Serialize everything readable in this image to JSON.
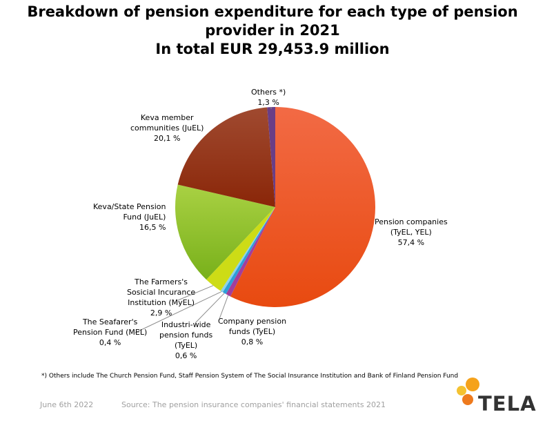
{
  "title": {
    "line1": "Breakdown of pension expenditure for each type of pension",
    "line2": "provider in 2021",
    "line3": "In total EUR 29,453.9 million"
  },
  "chart_data": {
    "type": "pie",
    "title": "Breakdown of pension expenditure for each type of pension provider in 2021",
    "subtitle": "In total EUR 29,453.9 million",
    "slices": [
      {
        "id": "pension-companies",
        "label_lines": [
          "Pension companies",
          "(TyEL, YEL)"
        ],
        "value": 57.4,
        "value_text": "57,4 %",
        "color": "#f0561e"
      },
      {
        "id": "company-pension-funds",
        "label_lines": [
          "Company pension",
          "funds (TyEL)"
        ],
        "value": 0.8,
        "value_text": "0,8 %",
        "color": "#a23e9c"
      },
      {
        "id": "industri-wide",
        "label_lines": [
          "Industri-wide",
          "pension funds",
          "(TyEL)"
        ],
        "value": 0.6,
        "value_text": "0,6 %",
        "color": "#2e9ed8"
      },
      {
        "id": "seafarers",
        "label_lines": [
          "The Seafarer's",
          "Pension Fund (MEL)"
        ],
        "value": 0.4,
        "value_text": "0,4 %",
        "color": "#8ad0ec"
      },
      {
        "id": "farmers",
        "label_lines": [
          "The Farmers's",
          "Sosicial Incurance",
          "Institution (MyEL)"
        ],
        "value": 2.9,
        "value_text": "2,9 %",
        "color": "#cddc16"
      },
      {
        "id": "keva-state",
        "label_lines": [
          "Keva/State Pension",
          "Fund (JuEL)"
        ],
        "value": 16.5,
        "value_text": "16,5 %",
        "color": "#98c53a"
      },
      {
        "id": "keva-member",
        "label_lines": [
          "Keva member",
          "communities (JuEL)"
        ],
        "value": 20.1,
        "value_text": "20,1 %",
        "color": "#9a321a"
      },
      {
        "id": "others",
        "label_lines": [
          "Others *)"
        ],
        "value": 1.3,
        "value_text": "1,3 %",
        "color": "#6a3e86"
      }
    ],
    "legend": "none"
  },
  "footnote": "*) Others include The Church Pension Fund, Staff Pension System of The Social Insurance Institution and Bank of Finland Pension Fund",
  "footer": {
    "date": "June 6th 2022",
    "source": "Source: The pension insurance companies' financial statements 2021"
  },
  "logo": {
    "text": "TELA",
    "colors": [
      "#f5a21b",
      "#f4c231",
      "#ee7a1d"
    ]
  }
}
